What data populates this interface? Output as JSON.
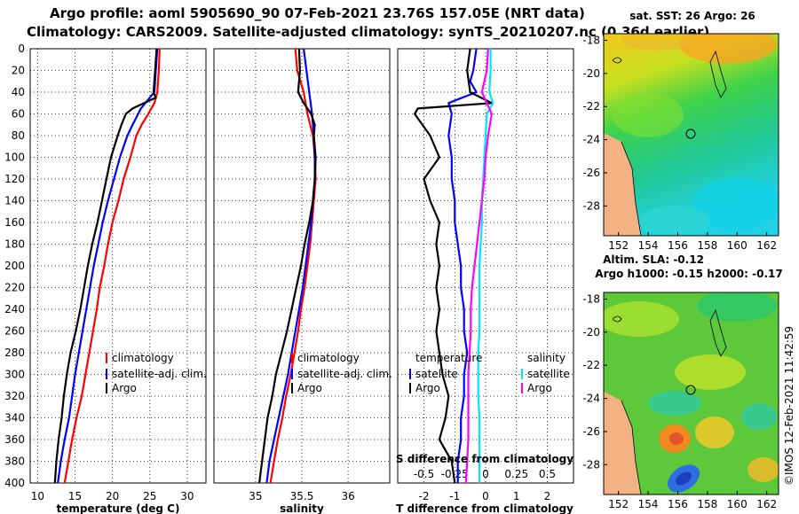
{
  "header": {
    "line1": "Argo profile: aoml 5905690_90 07-Feb-2021 23.76S 157.05E (NRT data)",
    "line2": "Climatology: CARS2009. Satellite-adjusted climatology: synTS_20210207.nc (0.36d earlier)"
  },
  "colors": {
    "climatology": "#ff0000",
    "satellite": "#0000ff",
    "argo": "#000000",
    "sat_salinity": "#00e5ff",
    "argo_salinity": "#ff00ff",
    "land": "#f4b183"
  },
  "chart_data": [
    {
      "type": "line",
      "panel": "temperature",
      "xlabel": "temperature (deg C)",
      "ylabel": "depth",
      "xlim": [
        9,
        32.5
      ],
      "ylim": [
        400,
        0
      ],
      "xticks": [
        10,
        15,
        20,
        25,
        30
      ],
      "yticks": [
        0,
        20,
        40,
        60,
        80,
        100,
        120,
        140,
        160,
        180,
        200,
        220,
        240,
        260,
        280,
        300,
        320,
        340,
        360,
        380,
        400
      ],
      "legend": [
        "climatology",
        "satellite-adj. clim.",
        "Argo"
      ],
      "series": [
        {
          "name": "climatology",
          "depth": [
            0,
            20,
            40,
            50,
            60,
            70,
            80,
            100,
            120,
            140,
            160,
            180,
            200,
            220,
            240,
            260,
            280,
            300,
            320,
            340,
            360,
            380,
            400
          ],
          "values": [
            26.3,
            26.2,
            26.0,
            25.6,
            24.8,
            23.9,
            23.2,
            22.4,
            21.5,
            20.8,
            20.0,
            19.4,
            18.9,
            18.3,
            17.9,
            17.4,
            16.9,
            16.4,
            15.9,
            15.2,
            14.6,
            14.1,
            13.6
          ]
        },
        {
          "name": "satellite-adj. clim.",
          "depth": [
            0,
            20,
            40,
            45,
            55,
            70,
            80,
            100,
            120,
            140,
            160,
            180,
            200,
            220,
            240,
            260,
            280,
            300,
            320,
            340,
            360,
            380,
            400
          ],
          "values": [
            26.0,
            25.8,
            25.6,
            25.0,
            23.8,
            22.7,
            22.0,
            21.0,
            20.2,
            19.4,
            18.7,
            18.1,
            17.5,
            17.0,
            16.5,
            16.0,
            15.5,
            15.0,
            14.6,
            14.2,
            13.6,
            13.1,
            12.7
          ]
        },
        {
          "name": "Argo",
          "depth": [
            0,
            20,
            40,
            45,
            55,
            60,
            70,
            80,
            100,
            120,
            140,
            160,
            180,
            200,
            220,
            240,
            260,
            280,
            300,
            320,
            340,
            360,
            380,
            400
          ],
          "values": [
            25.9,
            25.7,
            25.5,
            25.8,
            22.7,
            21.8,
            21.2,
            20.7,
            19.8,
            19.2,
            18.6,
            18.0,
            17.3,
            16.7,
            16.2,
            15.7,
            15.1,
            14.4,
            13.9,
            13.5,
            13.2,
            12.8,
            12.5,
            12.3
          ]
        }
      ]
    },
    {
      "type": "line",
      "panel": "salinity",
      "xlabel": "salinity",
      "ylabel": "depth",
      "xlim": [
        34.55,
        36.45
      ],
      "ylim": [
        400,
        0
      ],
      "xticks": [
        35,
        35.5,
        36
      ],
      "legend": [
        "climatology",
        "satellite-adj. clim.",
        "Argo"
      ],
      "series": [
        {
          "name": "climatology",
          "depth": [
            0,
            20,
            40,
            60,
            80,
            100,
            120,
            140,
            160,
            180,
            200,
            220,
            240,
            260,
            280,
            300,
            320,
            340,
            360,
            380,
            400
          ],
          "values": [
            35.43,
            35.45,
            35.52,
            35.56,
            35.62,
            35.64,
            35.65,
            35.63,
            35.61,
            35.59,
            35.56,
            35.53,
            35.49,
            35.46,
            35.42,
            35.38,
            35.33,
            35.29,
            35.24,
            35.2,
            35.16
          ]
        },
        {
          "name": "satellite-adj. clim.",
          "depth": [
            0,
            20,
            40,
            60,
            80,
            100,
            120,
            140,
            160,
            180,
            200,
            220,
            240,
            260,
            280,
            300,
            320,
            340,
            360,
            380,
            400
          ],
          "values": [
            35.52,
            35.55,
            35.58,
            35.61,
            35.63,
            35.64,
            35.64,
            35.62,
            35.6,
            35.57,
            35.54,
            35.51,
            35.47,
            35.43,
            35.39,
            35.35,
            35.3,
            35.25,
            35.2,
            35.15,
            35.12
          ]
        },
        {
          "name": "Argo",
          "depth": [
            0,
            20,
            40,
            50,
            60,
            70,
            80,
            100,
            120,
            140,
            160,
            180,
            200,
            220,
            240,
            260,
            280,
            300,
            320,
            340,
            360,
            380,
            400
          ],
          "values": [
            35.47,
            35.48,
            35.46,
            35.52,
            35.6,
            35.64,
            35.63,
            35.65,
            35.64,
            35.62,
            35.58,
            35.53,
            35.49,
            35.44,
            35.39,
            35.34,
            35.28,
            35.22,
            35.18,
            35.13,
            35.1,
            35.07,
            35.04
          ]
        }
      ]
    },
    {
      "type": "line",
      "panel": "difference",
      "xlabel": "T difference from climatology",
      "xlabel_top": "S difference from climatology",
      "xlim": [
        -2.85,
        2.85
      ],
      "ylim": [
        400,
        0
      ],
      "xticks": [
        -2,
        -1,
        0,
        1,
        2
      ],
      "xticks_salinity": [
        -0.5,
        -0.25,
        0,
        0.25,
        0.5
      ],
      "legend_temperature_title": "temperature",
      "legend_salinity_title": "salinity",
      "legend_labels": [
        "satellite",
        "Argo",
        "satellite",
        "Argo"
      ],
      "series": [
        {
          "name": "T satellite",
          "depth": [
            0,
            20,
            30,
            40,
            50,
            60,
            80,
            100,
            120,
            140,
            160,
            180,
            200,
            220,
            240,
            260,
            280,
            300,
            320,
            340,
            360,
            380,
            400
          ],
          "values": [
            -0.3,
            -0.4,
            -0.5,
            -0.3,
            -1.2,
            -1.1,
            -1.2,
            -1.1,
            -1.1,
            -1.0,
            -1.0,
            -0.9,
            -0.8,
            -0.8,
            -0.7,
            -0.7,
            -0.6,
            -0.7,
            -0.7,
            -0.8,
            -0.8,
            -0.9,
            -0.9
          ]
        },
        {
          "name": "T Argo",
          "depth": [
            0,
            20,
            40,
            50,
            55,
            60,
            80,
            100,
            120,
            140,
            160,
            180,
            200,
            220,
            240,
            260,
            280,
            300,
            320,
            340,
            360,
            380,
            400
          ],
          "values": [
            -0.5,
            -0.6,
            -0.5,
            0.2,
            -2.2,
            -2.3,
            -1.8,
            -1.5,
            -2.0,
            -1.8,
            -1.5,
            -1.6,
            -1.5,
            -1.6,
            -1.5,
            -1.6,
            -1.5,
            -1.4,
            -1.2,
            -1.3,
            -1.5,
            -1.1,
            -1.0
          ]
        },
        {
          "name": "S satellite",
          "depth": [
            0,
            20,
            40,
            50,
            60,
            80,
            100,
            120,
            140,
            160,
            180,
            200,
            220,
            240,
            260,
            280,
            300,
            320,
            340,
            360,
            380,
            400
          ],
          "values": [
            0.04,
            0.04,
            0.03,
            0.06,
            0.01,
            0.0,
            -0.01,
            -0.02,
            -0.03,
            -0.03,
            -0.04,
            -0.05,
            -0.05,
            -0.05,
            -0.05,
            -0.06,
            -0.06,
            -0.06,
            -0.05,
            -0.05,
            -0.05,
            -0.05
          ]
        },
        {
          "name": "S Argo",
          "depth": [
            0,
            20,
            40,
            50,
            60,
            80,
            100,
            120,
            140,
            160,
            180,
            200,
            220,
            240,
            260,
            280,
            300,
            320,
            340,
            360,
            380,
            400
          ],
          "values": [
            0.02,
            0.01,
            -0.03,
            0.01,
            0.05,
            0.02,
            0.0,
            -0.01,
            -0.03,
            -0.05,
            -0.07,
            -0.09,
            -0.11,
            -0.12,
            -0.12,
            -0.13,
            -0.14,
            -0.14,
            -0.14,
            -0.14,
            -0.15,
            -0.16
          ]
        }
      ]
    },
    {
      "type": "heatmap",
      "panel": "sst_map",
      "title": "sat. SST: 26 Argo: 26",
      "xticks": [
        152,
        154,
        156,
        158,
        160,
        162
      ],
      "yticks": [
        -18,
        -20,
        -22,
        -24,
        -26,
        -28
      ],
      "xlim": [
        151,
        162.8
      ],
      "ylim": [
        -29.8,
        -17.6
      ],
      "marker": [
        157.05,
        -23.76
      ]
    },
    {
      "type": "heatmap",
      "panel": "sla_map",
      "title_line1": "Altim. SLA: -0.12",
      "title_line2": "Argo h1000: -0.15 h2000: -0.17",
      "xticks": [
        152,
        154,
        156,
        158,
        160,
        162
      ],
      "yticks": [
        -18,
        -20,
        -22,
        -24,
        -26,
        -28
      ],
      "xlim": [
        151,
        162.8
      ],
      "ylim": [
        -29.8,
        -17.6
      ],
      "marker": [
        157.05,
        -23.76
      ]
    }
  ],
  "credit": "©IMOS 12-Feb-2021 11:42:59"
}
